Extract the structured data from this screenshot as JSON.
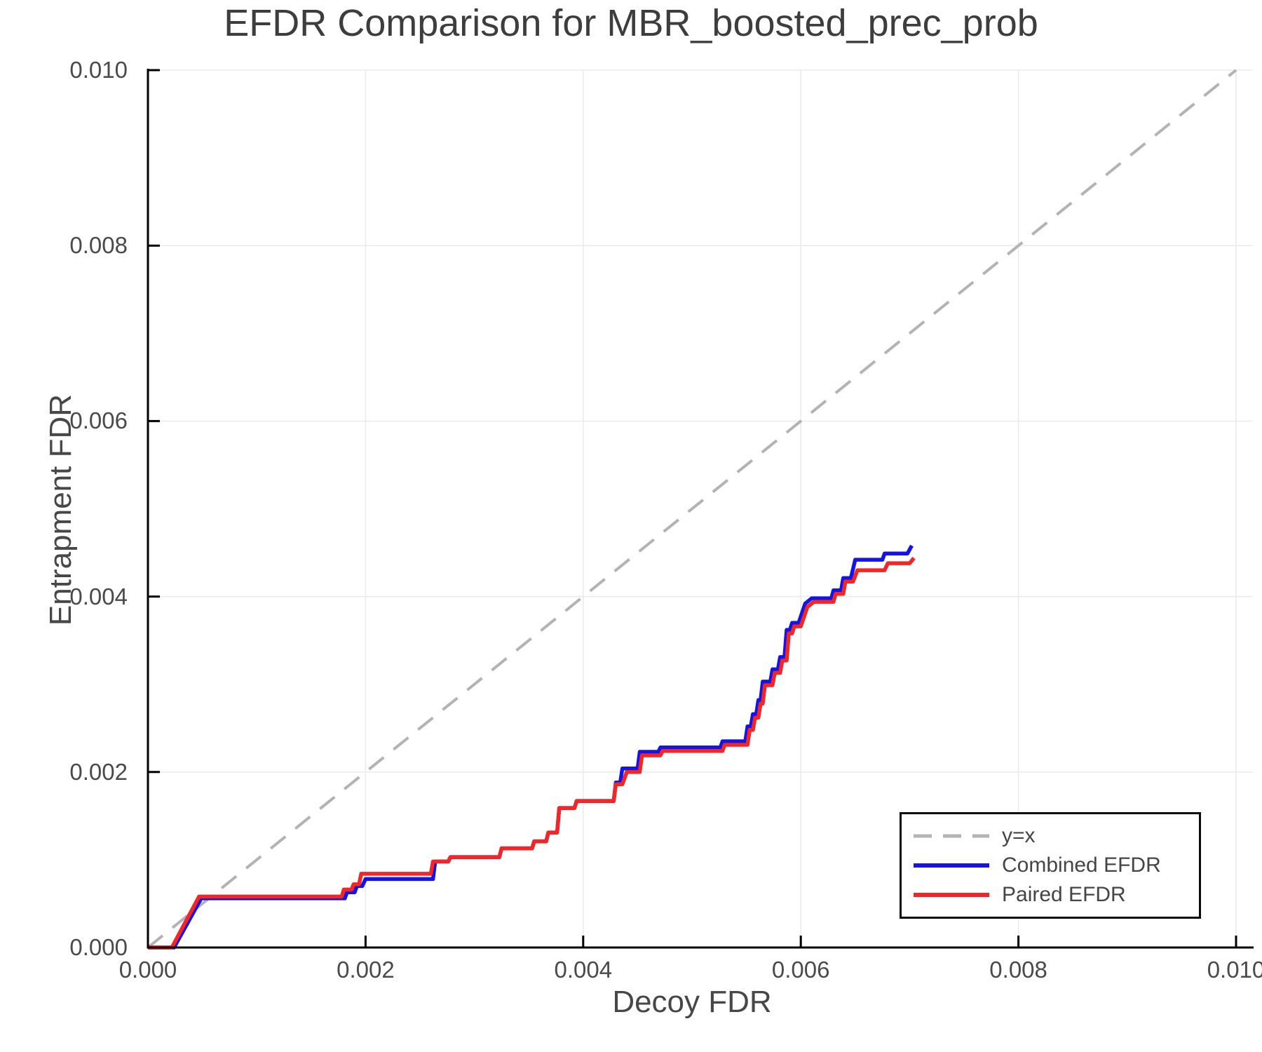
{
  "chart_data": {
    "type": "line",
    "title": "EFDR Comparison for MBR_boosted_prec_prob",
    "xlabel": "Decoy FDR",
    "ylabel": "Entrapment FDR",
    "xlim": [
      0.0,
      0.01
    ],
    "ylim": [
      0.0,
      0.01
    ],
    "grid": true,
    "xticks": {
      "values": [
        0.0,
        0.002,
        0.004,
        0.006,
        0.008,
        0.01
      ],
      "labels": [
        "0.000",
        "0.002",
        "0.004",
        "0.006",
        "0.008",
        "0.010"
      ]
    },
    "yticks": {
      "values": [
        0.0,
        0.002,
        0.004,
        0.006,
        0.008,
        0.01
      ],
      "labels": [
        "0.000",
        "0.002",
        "0.004",
        "0.006",
        "0.008",
        "0.010"
      ]
    },
    "colors": {
      "identity": "#b3b3b3",
      "combined": "#1414e6",
      "paired": "#f42525",
      "grid": "#ebebeb",
      "spine": "#000000",
      "text": "#474747"
    },
    "legend": {
      "position": "lower right",
      "entries": [
        {
          "label": "y=x",
          "color": "#b3b3b3",
          "dashed": true
        },
        {
          "label": "Combined EFDR",
          "color": "#1414e6",
          "dashed": false
        },
        {
          "label": "Paired EFDR",
          "color": "#f42525",
          "dashed": false
        }
      ]
    },
    "reference_line": {
      "name": "y=x",
      "from": [
        0.0,
        0.0
      ],
      "to": [
        0.01,
        0.01
      ],
      "style": "dashed"
    },
    "series": [
      {
        "name": "Combined EFDR",
        "color": "#1414e6",
        "points": [
          [
            0,
            0
          ],
          [
            0.00024,
            0
          ],
          [
            0.00049,
            0.00056
          ],
          [
            0.00181,
            0.00056
          ],
          [
            0.00183,
            0.00063
          ],
          [
            0.0019,
            0.00063
          ],
          [
            0.00192,
            0.0007
          ],
          [
            0.00197,
            0.0007
          ],
          [
            0.002,
            0.00078
          ],
          [
            0.00262,
            0.00078
          ],
          [
            0.00264,
            0.00098
          ],
          [
            0.00276,
            0.00098
          ],
          [
            0.00278,
            0.00103
          ],
          [
            0.00323,
            0.00103
          ],
          [
            0.00325,
            0.00113
          ],
          [
            0.00353,
            0.00113
          ],
          [
            0.00355,
            0.00121
          ],
          [
            0.00366,
            0.00121
          ],
          [
            0.00368,
            0.00131
          ],
          [
            0.00376,
            0.00131
          ],
          [
            0.00378,
            0.00159
          ],
          [
            0.00392,
            0.00159
          ],
          [
            0.00394,
            0.00167
          ],
          [
            0.00428,
            0.00167
          ],
          [
            0.0043,
            0.00188
          ],
          [
            0.00434,
            0.00188
          ],
          [
            0.00436,
            0.00204
          ],
          [
            0.0045,
            0.00204
          ],
          [
            0.00452,
            0.00223
          ],
          [
            0.00469,
            0.00223
          ],
          [
            0.00471,
            0.00228
          ],
          [
            0.00526,
            0.00228
          ],
          [
            0.00528,
            0.00235
          ],
          [
            0.00549,
            0.00235
          ],
          [
            0.00551,
            0.00252
          ],
          [
            0.00554,
            0.00252
          ],
          [
            0.00556,
            0.00266
          ],
          [
            0.00559,
            0.00266
          ],
          [
            0.00561,
            0.00282
          ],
          [
            0.00563,
            0.00282
          ],
          [
            0.00565,
            0.00303
          ],
          [
            0.00572,
            0.00303
          ],
          [
            0.00574,
            0.00317
          ],
          [
            0.00579,
            0.00317
          ],
          [
            0.00581,
            0.00331
          ],
          [
            0.00585,
            0.00331
          ],
          [
            0.00587,
            0.00362
          ],
          [
            0.0059,
            0.00362
          ],
          [
            0.00592,
            0.0037
          ],
          [
            0.00598,
            0.0037
          ],
          [
            0.00604,
            0.00392
          ],
          [
            0.0061,
            0.00398
          ],
          [
            0.00628,
            0.00398
          ],
          [
            0.0063,
            0.00407
          ],
          [
            0.00637,
            0.00407
          ],
          [
            0.00639,
            0.00421
          ],
          [
            0.00646,
            0.00421
          ],
          [
            0.0065,
            0.00442
          ],
          [
            0.00675,
            0.00442
          ],
          [
            0.00677,
            0.00449
          ],
          [
            0.00698,
            0.00449
          ],
          [
            0.00702,
            0.00458
          ]
        ]
      },
      {
        "name": "Paired EFDR",
        "color": "#f42525",
        "points": [
          [
            0,
            0
          ],
          [
            0.00022,
            0
          ],
          [
            0.00047,
            0.00058
          ],
          [
            0.00178,
            0.00058
          ],
          [
            0.0018,
            0.00066
          ],
          [
            0.00187,
            0.00066
          ],
          [
            0.00189,
            0.00072
          ],
          [
            0.00194,
            0.00072
          ],
          [
            0.00196,
            0.00084
          ],
          [
            0.0026,
            0.00084
          ],
          [
            0.00262,
            0.00098
          ],
          [
            0.00276,
            0.00098
          ],
          [
            0.00278,
            0.00103
          ],
          [
            0.00323,
            0.00103
          ],
          [
            0.00325,
            0.00113
          ],
          [
            0.00353,
            0.00113
          ],
          [
            0.00355,
            0.00121
          ],
          [
            0.00366,
            0.00121
          ],
          [
            0.00368,
            0.00131
          ],
          [
            0.00376,
            0.00131
          ],
          [
            0.00378,
            0.00159
          ],
          [
            0.00392,
            0.00159
          ],
          [
            0.00394,
            0.00167
          ],
          [
            0.00428,
            0.00167
          ],
          [
            0.0043,
            0.00186
          ],
          [
            0.00436,
            0.00186
          ],
          [
            0.0044,
            0.002
          ],
          [
            0.00452,
            0.002
          ],
          [
            0.00454,
            0.00219
          ],
          [
            0.00471,
            0.00219
          ],
          [
            0.00473,
            0.00224
          ],
          [
            0.00528,
            0.00224
          ],
          [
            0.0053,
            0.00231
          ],
          [
            0.00551,
            0.00231
          ],
          [
            0.00553,
            0.00248
          ],
          [
            0.00556,
            0.00248
          ],
          [
            0.00558,
            0.00262
          ],
          [
            0.00561,
            0.00262
          ],
          [
            0.00563,
            0.00278
          ],
          [
            0.00565,
            0.00278
          ],
          [
            0.00567,
            0.00299
          ],
          [
            0.00574,
            0.00299
          ],
          [
            0.00576,
            0.00313
          ],
          [
            0.00581,
            0.00313
          ],
          [
            0.00583,
            0.00327
          ],
          [
            0.00587,
            0.00327
          ],
          [
            0.00589,
            0.00358
          ],
          [
            0.00592,
            0.00358
          ],
          [
            0.00594,
            0.00366
          ],
          [
            0.006,
            0.00366
          ],
          [
            0.00606,
            0.00388
          ],
          [
            0.00612,
            0.00394
          ],
          [
            0.0063,
            0.00394
          ],
          [
            0.00632,
            0.00403
          ],
          [
            0.00639,
            0.00403
          ],
          [
            0.00641,
            0.00417
          ],
          [
            0.00648,
            0.00417
          ],
          [
            0.00652,
            0.0043
          ],
          [
            0.00677,
            0.0043
          ],
          [
            0.0068,
            0.00438
          ],
          [
            0.007,
            0.00438
          ],
          [
            0.00704,
            0.00444
          ]
        ]
      }
    ]
  }
}
